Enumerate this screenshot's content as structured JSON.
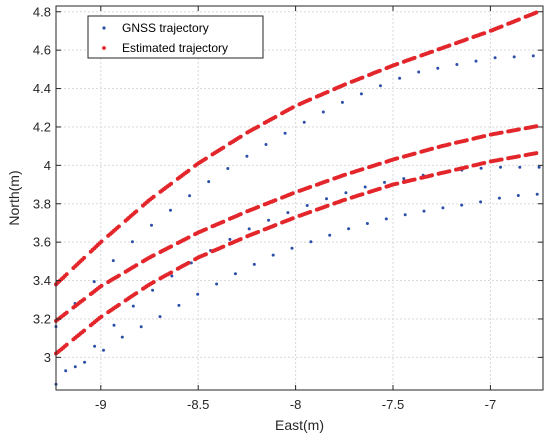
{
  "chart_data": {
    "type": "scatter",
    "xlabel": "East(m)",
    "ylabel": "North(m)",
    "xlim": [
      -9.23,
      -6.73
    ],
    "ylim": [
      2.83,
      4.83
    ],
    "xticks": [
      -9,
      -8.5,
      -8,
      -7.5,
      -7
    ],
    "xtick_labels": [
      "-9",
      "-8.5",
      "-8",
      "-7.5",
      "-7"
    ],
    "yticks": [
      3,
      3.2,
      3.4,
      3.6,
      3.8,
      4,
      4.2,
      4.4,
      4.6,
      4.8
    ],
    "ytick_labels": [
      "3",
      "3.2",
      "3.4",
      "3.6",
      "3.8",
      "4",
      "4.2",
      "4.4",
      "4.6",
      "4.8"
    ],
    "grid": true,
    "legend_position": "top-left",
    "colors": {
      "gnss": "#2b4fa8",
      "estimated": "#e3262b",
      "grid": "#d9d9d9",
      "axis": "#262626"
    },
    "series": [
      {
        "name": "GNSS trajectory",
        "style": "dots",
        "tracks": [
          [
            [
              -9.23,
              3.16
            ],
            [
              -9.1,
              3.32
            ],
            [
              -8.95,
              3.49
            ],
            [
              -8.8,
              3.64
            ],
            [
              -8.6,
              3.8
            ],
            [
              -8.4,
              3.95
            ],
            [
              -8.2,
              4.08
            ],
            [
              -8,
              4.2
            ],
            [
              -7.8,
              4.31
            ],
            [
              -7.6,
              4.4
            ],
            [
              -7.4,
              4.48
            ],
            [
              -7.2,
              4.52
            ],
            [
              -6.98,
              4.56
            ],
            [
              -6.78,
              4.57
            ]
          ],
          [
            [
              -9.23,
              2.86
            ],
            [
              -9.1,
              2.98
            ],
            [
              -8.95,
              3.15
            ],
            [
              -8.8,
              3.3
            ],
            [
              -8.6,
              3.45
            ],
            [
              -8.4,
              3.58
            ],
            [
              -8.2,
              3.69
            ],
            [
              -8,
              3.77
            ],
            [
              -7.8,
              3.84
            ],
            [
              -7.6,
              3.9
            ],
            [
              -7.4,
              3.94
            ],
            [
              -7.2,
              3.97
            ],
            [
              -7,
              3.99
            ],
            [
              -6.75,
              3.99
            ]
          ],
          [
            [
              -9.18,
              2.93
            ],
            [
              -9.05,
              2.99
            ],
            [
              -8.9,
              3.1
            ],
            [
              -8.7,
              3.21
            ],
            [
              -8.5,
              3.33
            ],
            [
              -8.3,
              3.44
            ],
            [
              -8.1,
              3.54
            ],
            [
              -7.9,
              3.61
            ],
            [
              -7.7,
              3.68
            ],
            [
              -7.5,
              3.73
            ],
            [
              -7.3,
              3.77
            ],
            [
              -7.1,
              3.8
            ],
            [
              -6.9,
              3.84
            ],
            [
              -6.76,
              3.85
            ]
          ]
        ]
      },
      {
        "name": "Estimated trajectory",
        "style": "dashed-dots",
        "tracks": [
          [
            [
              -9.23,
              3.38
            ],
            [
              -9,
              3.6
            ],
            [
              -8.75,
              3.82
            ],
            [
              -8.5,
              4.01
            ],
            [
              -8.25,
              4.17
            ],
            [
              -8,
              4.31
            ],
            [
              -7.75,
              4.42
            ],
            [
              -7.5,
              4.52
            ],
            [
              -7.25,
              4.61
            ],
            [
              -7,
              4.7
            ],
            [
              -6.73,
              4.81
            ]
          ],
          [
            [
              -9.23,
              3.19
            ],
            [
              -9,
              3.37
            ],
            [
              -8.75,
              3.52
            ],
            [
              -8.5,
              3.65
            ],
            [
              -8.25,
              3.76
            ],
            [
              -8,
              3.86
            ],
            [
              -7.75,
              3.95
            ],
            [
              -7.5,
              4.03
            ],
            [
              -7.25,
              4.1
            ],
            [
              -7,
              4.16
            ],
            [
              -6.73,
              4.21
            ]
          ],
          [
            [
              -9.23,
              3.02
            ],
            [
              -9,
              3.21
            ],
            [
              -8.75,
              3.38
            ],
            [
              -8.5,
              3.52
            ],
            [
              -8.25,
              3.63
            ],
            [
              -8,
              3.73
            ],
            [
              -7.75,
              3.82
            ],
            [
              -7.5,
              3.9
            ],
            [
              -7.25,
              3.96
            ],
            [
              -7,
              4.02
            ],
            [
              -6.73,
              4.07
            ]
          ]
        ]
      }
    ]
  }
}
